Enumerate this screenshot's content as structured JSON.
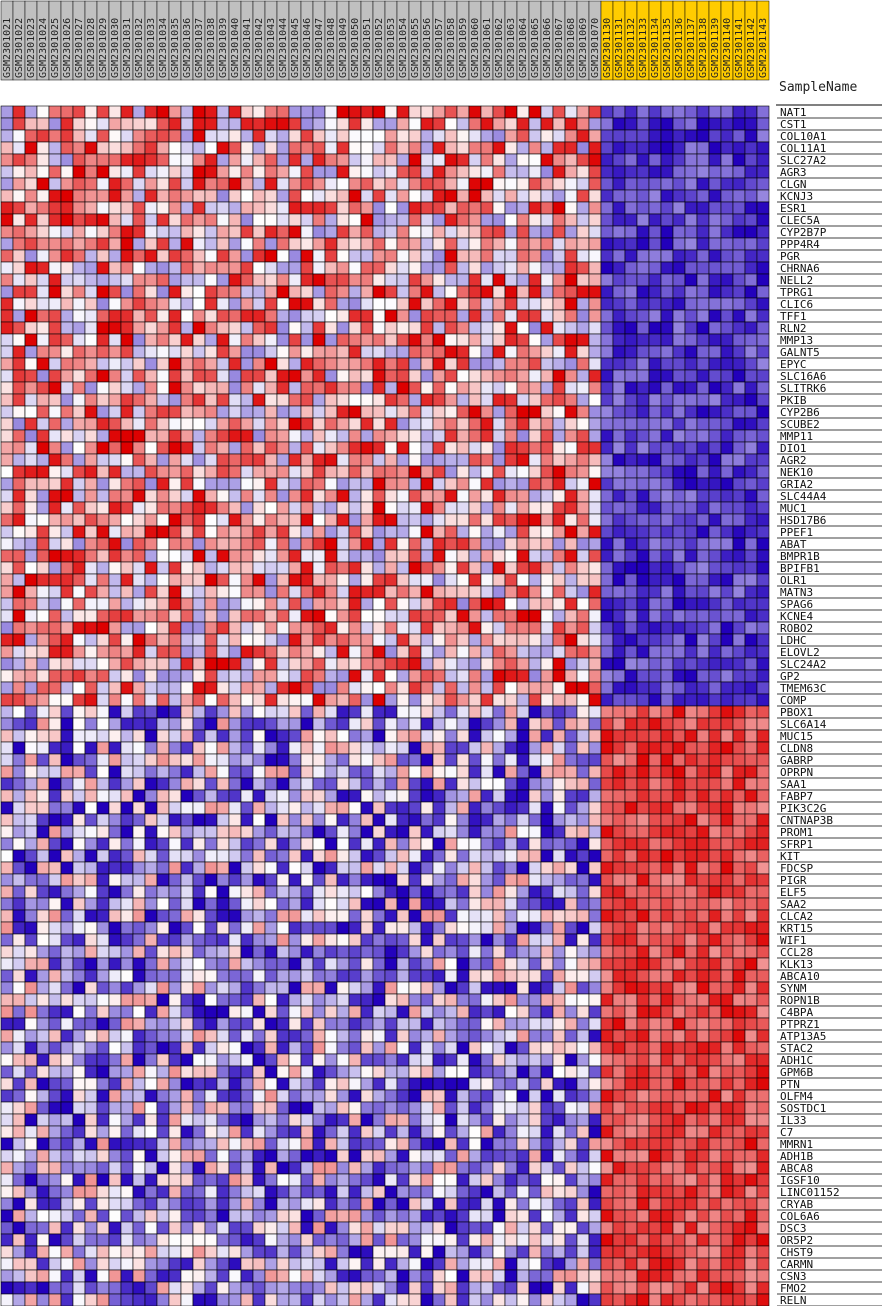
{
  "chart_data": {
    "type": "heatmap",
    "row_header": "SampleName",
    "columns": [
      "GSM2301021",
      "GSM2301022",
      "GSM2301023",
      "GSM2301024",
      "GSM2301025",
      "GSM2301026",
      "GSM2301027",
      "GSM2301028",
      "GSM2301029",
      "GSM2301030",
      "GSM2301031",
      "GSM2301032",
      "GSM2301033",
      "GSM2301034",
      "GSM2301035",
      "GSM2301036",
      "GSM2301037",
      "GSM2301038",
      "GSM2301039",
      "GSM2301040",
      "GSM2301041",
      "GSM2301042",
      "GSM2301043",
      "GSM2301044",
      "GSM2301045",
      "GSM2301046",
      "GSM2301047",
      "GSM2301048",
      "GSM2301049",
      "GSM2301050",
      "GSM2301051",
      "GSM2301052",
      "GSM2301053",
      "GSM2301054",
      "GSM2301055",
      "GSM2301056",
      "GSM2301057",
      "GSM2301058",
      "GSM2301059",
      "GSM2301060",
      "GSM2301061",
      "GSM2301062",
      "GSM2301063",
      "GSM2301064",
      "GSM2301065",
      "GSM2301066",
      "GSM2301067",
      "GSM2301068",
      "GSM2301069",
      "GSM2301070",
      "GSM2301130",
      "GSM2301131",
      "GSM2301132",
      "GSM2301133",
      "GSM2301134",
      "GSM2301135",
      "GSM2301136",
      "GSM2301137",
      "GSM2301138",
      "GSM2301139",
      "GSM2301140",
      "GSM2301141",
      "GSM2301142",
      "GSM2301143"
    ],
    "highlight_start_index": 50,
    "header_colors": {
      "normal": "#c0c0c0",
      "highlight": "#ffcc00"
    },
    "color_scale": {
      "low": "#2200bb",
      "mid": "#ffffff",
      "high": "#dd0000"
    },
    "rows": [
      "NAT1",
      "CST1",
      "COL10A1",
      "COL11A1",
      "SLC27A2",
      "AGR3",
      "CLGN",
      "KCNJ3",
      "ESR1",
      "CLEC5A",
      "CYP2B7P",
      "PPP4R4",
      "PGR",
      "CHRNA6",
      "NELL2",
      "TPRG1",
      "CLIC6",
      "TFF1",
      "RLN2",
      "MMP13",
      "GALNT5",
      "EPYC",
      "SLC16A6",
      "SLITRK6",
      "PKIB",
      "CYP2B6",
      "SCUBE2",
      "MMP11",
      "DIO1",
      "AGR2",
      "NEK10",
      "GRIA2",
      "SLC44A4",
      "MUC1",
      "HSD17B6",
      "PPEF1",
      "ABAT",
      "BMPR1B",
      "BPIFB1",
      "OLR1",
      "MATN3",
      "SPAG6",
      "KCNE4",
      "ROBO2",
      "LDHC",
      "ELOVL2",
      "SLC24A2",
      "GP2",
      "TMEM63C",
      "COMP",
      "PBOX1",
      "SLC6A14",
      "MUC15",
      "CLDN8",
      "GABRP",
      "OPRPN",
      "SAA1",
      "FABP7",
      "PIK3C2G",
      "CNTNAP3B",
      "PROM1",
      "SFRP1",
      "KIT",
      "FDCSP",
      "PIGR",
      "ELF5",
      "SAA2",
      "CLCA2",
      "KRT15",
      "WIF1",
      "CCL28",
      "KLK13",
      "ABCA10",
      "SYNM",
      "ROPN1B",
      "C4BPA",
      "PTPRZ1",
      "ATP13A5",
      "STAC2",
      "ADH1C",
      "GPM6B",
      "PTN",
      "OLFM4",
      "SOSTDC1",
      "IL33",
      "C7",
      "MMRN1",
      "ADH1B",
      "ABCA8",
      "IGSF10",
      "LINC01152",
      "CRYAB",
      "COL6A6",
      "DSC3",
      "OR5P2",
      "CHST9",
      "CARMN",
      "CSN3",
      "FMO2",
      "RELN"
    ],
    "row_group_split_index": 50,
    "value_seed": 20171,
    "value_range": [
      -1,
      1
    ],
    "legend": "none",
    "grid": true
  }
}
